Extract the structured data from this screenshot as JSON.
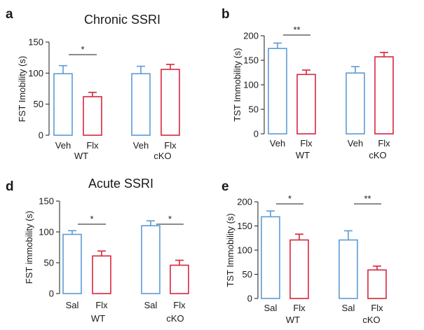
{
  "titles": {
    "chronic": "Chronic SSRI",
    "acute": "Acute SSRI"
  },
  "colors": {
    "control": "#5b9bd5",
    "treated": "#d7263d",
    "axis": "#1a1a1a"
  },
  "chart_data": [
    {
      "panel": "a",
      "type": "bar",
      "title": "Chronic SSRI",
      "ylabel": "FST Imobility (s)",
      "ylim": [
        0,
        150
      ],
      "yticks": [
        0,
        50,
        100,
        150
      ],
      "grid": false,
      "groups": [
        {
          "name": "WT",
          "bars": [
            {
              "label": "Veh",
              "value": 99,
              "error": 13,
              "role": "control"
            },
            {
              "label": "Flx",
              "value": 62,
              "error": 7,
              "role": "treated"
            }
          ]
        },
        {
          "name": "",
          "bars": [
            {
              "label": "Veh",
              "value": 99,
              "error": 12,
              "role": "control"
            },
            {
              "label": "Flx",
              "value": 106,
              "error": 8,
              "role": "treated"
            }
          ]
        }
      ],
      "cko_label": "cKO",
      "significance": [
        {
          "group": 0,
          "label": "*"
        }
      ]
    },
    {
      "panel": "b",
      "type": "bar",
      "title": "",
      "ylabel": "TST Immobility (s)",
      "ylim": [
        0,
        200
      ],
      "yticks": [
        0,
        50,
        100,
        150,
        200
      ],
      "grid": false,
      "groups": [
        {
          "name": "WT",
          "bars": [
            {
              "label": "Veh",
              "value": 174,
              "error": 11,
              "role": "control"
            },
            {
              "label": "Flx",
              "value": 121,
              "error": 9,
              "role": "treated"
            }
          ]
        },
        {
          "name": "cKO",
          "bars": [
            {
              "label": "Veh",
              "value": 124,
              "error": 13,
              "role": "control"
            },
            {
              "label": "Flx",
              "value": 157,
              "error": 9,
              "role": "treated"
            }
          ]
        }
      ],
      "significance": [
        {
          "group": 0,
          "label": "**"
        }
      ]
    },
    {
      "panel": "d",
      "type": "bar",
      "title": "Acute SSRI",
      "ylabel": "FST immobility (s)",
      "ylim": [
        0,
        150
      ],
      "yticks": [
        0,
        50,
        100,
        150
      ],
      "grid": false,
      "groups": [
        {
          "name": "WT",
          "bars": [
            {
              "label": "Sal",
              "value": 96,
              "error": 6,
              "role": "control"
            },
            {
              "label": "Flx",
              "value": 61,
              "error": 8,
              "role": "treated"
            }
          ]
        },
        {
          "name": "cKO",
          "bars": [
            {
              "label": "Sal",
              "value": 110,
              "error": 8,
              "role": "control"
            },
            {
              "label": "Flx",
              "value": 46,
              "error": 8,
              "role": "treated"
            }
          ]
        }
      ],
      "significance": [
        {
          "group": 0,
          "label": "*"
        },
        {
          "group": 1,
          "label": "*"
        }
      ]
    },
    {
      "panel": "e",
      "type": "bar",
      "title": "",
      "ylabel": "TST Immobility (s)",
      "ylim": [
        0,
        200
      ],
      "yticks": [
        0,
        50,
        100,
        150,
        200
      ],
      "grid": false,
      "groups": [
        {
          "name": "WT",
          "bars": [
            {
              "label": "Sal",
              "value": 169,
              "error": 12,
              "role": "control"
            },
            {
              "label": "Flx",
              "value": 121,
              "error": 12,
              "role": "treated"
            }
          ]
        },
        {
          "name": "cKO",
          "bars": [
            {
              "label": "Sal",
              "value": 121,
              "error": 19,
              "role": "control"
            },
            {
              "label": "Flx",
              "value": 59,
              "error": 8,
              "role": "treated"
            }
          ]
        }
      ],
      "significance": [
        {
          "group": 0,
          "label": "*"
        },
        {
          "group": 1,
          "label": "**"
        }
      ]
    }
  ]
}
